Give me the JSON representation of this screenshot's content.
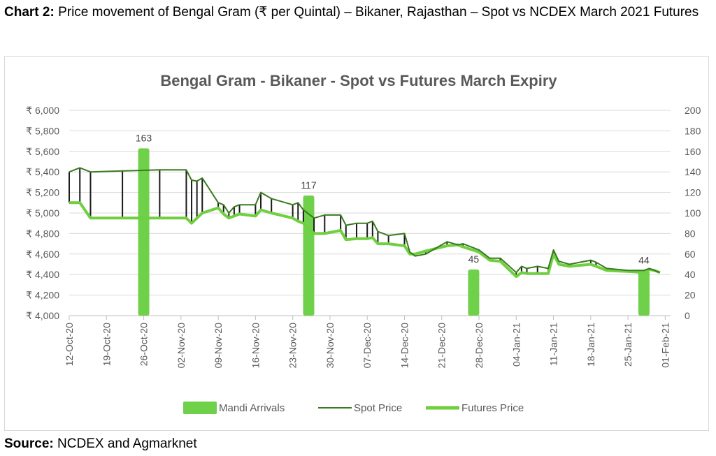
{
  "caption": {
    "label": "Chart 2:",
    "text": "Price movement of Bengal Gram (₹ per Quintal) – Bikaner, Rajasthan – Spot vs NCDEX March 2021 Futures"
  },
  "source": {
    "label": "Source:",
    "text": "NCDEX and Agmarknet"
  },
  "colors": {
    "arrivals": "#6fd04a",
    "spot": "#3a7a20",
    "futures": "#6fcf3f",
    "hiLo": "#1a1a1a",
    "grid": "#d9d9d9",
    "axisText": "#595959"
  },
  "chart_data": {
    "type": "bar",
    "title": "Bengal Gram - Bikaner - Spot vs Futures March Expiry",
    "grid": true,
    "legend_position": "bottom",
    "legend": [
      "Mandi Arrivals",
      "Spot Price",
      "Futures Price"
    ],
    "x_ticks": [
      "12-Oct-20",
      "19-Oct-20",
      "26-Oct-20",
      "02-Nov-20",
      "09-Nov-20",
      "16-Nov-20",
      "23-Nov-20",
      "30-Nov-20",
      "07-Dec-20",
      "14-Dec-20",
      "21-Dec-20",
      "28-Dec-20",
      "04-Jan-21",
      "11-Jan-21",
      "18-Jan-21",
      "25-Jan-21",
      "01-Feb-21"
    ],
    "x_range": [
      "12-Oct-20",
      "02-Feb-21"
    ],
    "y_left": {
      "min": 4000,
      "max": 6000,
      "step": 200,
      "tick_labels": [
        "₹ 4,000",
        "₹ 4,200",
        "₹ 4,400",
        "₹ 4,600",
        "₹ 4,800",
        "₹ 5,000",
        "₹ 5,200",
        "₹ 5,400",
        "₹ 5,600",
        "₹ 5,800",
        "₹ 6,000"
      ]
    },
    "y_right": {
      "min": 0,
      "max": 200,
      "step": 20,
      "tick_labels": [
        "0",
        "20",
        "40",
        "60",
        "80",
        "100",
        "120",
        "140",
        "160",
        "180",
        "200"
      ]
    },
    "arrivals": [
      {
        "date": "26-Oct-20",
        "value": 163,
        "label": "163"
      },
      {
        "date": "26-Nov-20",
        "value": 117,
        "label": "117"
      },
      {
        "date": "27-Dec-20",
        "value": 45,
        "label": "45"
      },
      {
        "date": "28-Jan-21",
        "value": 44,
        "label": "44"
      }
    ],
    "series": [
      {
        "name": "Spot Price",
        "points": [
          [
            "12-Oct-20",
            5400
          ],
          [
            "14-Oct-20",
            5440
          ],
          [
            "16-Oct-20",
            5400
          ],
          [
            "22-Oct-20",
            5410
          ],
          [
            "29-Oct-20",
            5420
          ],
          [
            "03-Nov-20",
            5420
          ],
          [
            "04-Nov-20",
            5320
          ],
          [
            "05-Nov-20",
            5310
          ],
          [
            "06-Nov-20",
            5340
          ],
          [
            "09-Nov-20",
            5100
          ],
          [
            "10-Nov-20",
            5080
          ],
          [
            "11-Nov-20",
            5000
          ],
          [
            "12-Nov-20",
            5060
          ],
          [
            "13-Nov-20",
            5080
          ],
          [
            "16-Nov-20",
            5080
          ],
          [
            "17-Nov-20",
            5200
          ],
          [
            "19-Nov-20",
            5140
          ],
          [
            "23-Nov-20",
            5080
          ],
          [
            "24-Nov-20",
            5100
          ],
          [
            "25-Nov-20",
            5030
          ],
          [
            "27-Nov-20",
            4950
          ],
          [
            "29-Nov-20",
            4980
          ],
          [
            "02-Dec-20",
            4980
          ],
          [
            "03-Dec-20",
            4880
          ],
          [
            "05-Dec-20",
            4900
          ],
          [
            "07-Dec-20",
            4900
          ],
          [
            "08-Dec-20",
            4920
          ],
          [
            "09-Dec-20",
            4820
          ],
          [
            "11-Dec-20",
            4780
          ],
          [
            "14-Dec-20",
            4800
          ],
          [
            "15-Dec-20",
            4620
          ],
          [
            "16-Dec-20",
            4580
          ],
          [
            "18-Dec-20",
            4600
          ],
          [
            "22-Dec-20",
            4720
          ],
          [
            "24-Dec-20",
            4690
          ],
          [
            "25-Dec-20",
            4700
          ],
          [
            "28-Dec-20",
            4640
          ],
          [
            "30-Dec-20",
            4560
          ],
          [
            "01-Jan-21",
            4560
          ],
          [
            "04-Jan-21",
            4420
          ],
          [
            "05-Jan-21",
            4480
          ],
          [
            "06-Jan-21",
            4460
          ],
          [
            "08-Jan-21",
            4480
          ],
          [
            "10-Jan-21",
            4460
          ],
          [
            "11-Jan-21",
            4640
          ],
          [
            "12-Jan-21",
            4530
          ],
          [
            "14-Jan-21",
            4500
          ],
          [
            "18-Jan-21",
            4540
          ],
          [
            "19-Jan-21",
            4520
          ],
          [
            "21-Jan-21",
            4460
          ],
          [
            "25-Jan-21",
            4440
          ],
          [
            "28-Jan-21",
            4440
          ],
          [
            "29-Jan-21",
            4460
          ],
          [
            "30-Jan-21",
            4440
          ],
          [
            "31-Jan-21",
            4420
          ]
        ]
      },
      {
        "name": "Futures Price",
        "points": [
          [
            "12-Oct-20",
            5100
          ],
          [
            "14-Oct-20",
            5100
          ],
          [
            "16-Oct-20",
            4950
          ],
          [
            "22-Oct-20",
            4950
          ],
          [
            "29-Oct-20",
            4950
          ],
          [
            "03-Nov-20",
            4950
          ],
          [
            "04-Nov-20",
            4900
          ],
          [
            "05-Nov-20",
            4950
          ],
          [
            "06-Nov-20",
            5000
          ],
          [
            "09-Nov-20",
            5050
          ],
          [
            "10-Nov-20",
            4990
          ],
          [
            "11-Nov-20",
            4950
          ],
          [
            "12-Nov-20",
            4970
          ],
          [
            "13-Nov-20",
            4990
          ],
          [
            "16-Nov-20",
            4970
          ],
          [
            "17-Nov-20",
            5030
          ],
          [
            "19-Nov-20",
            5000
          ],
          [
            "23-Nov-20",
            4950
          ],
          [
            "24-Nov-20",
            4920
          ],
          [
            "25-Nov-20",
            4900
          ],
          [
            "27-Nov-20",
            4800
          ],
          [
            "29-Nov-20",
            4800
          ],
          [
            "02-Dec-20",
            4830
          ],
          [
            "03-Dec-20",
            4740
          ],
          [
            "05-Dec-20",
            4750
          ],
          [
            "07-Dec-20",
            4750
          ],
          [
            "08-Dec-20",
            4760
          ],
          [
            "09-Dec-20",
            4700
          ],
          [
            "11-Dec-20",
            4700
          ],
          [
            "14-Dec-20",
            4680
          ],
          [
            "15-Dec-20",
            4600
          ],
          [
            "16-Dec-20",
            4600
          ],
          [
            "18-Dec-20",
            4630
          ],
          [
            "22-Dec-20",
            4680
          ],
          [
            "24-Dec-20",
            4690
          ],
          [
            "25-Dec-20",
            4670
          ],
          [
            "28-Dec-20",
            4620
          ],
          [
            "30-Dec-20",
            4540
          ],
          [
            "01-Jan-21",
            4530
          ],
          [
            "04-Jan-21",
            4380
          ],
          [
            "05-Jan-21",
            4420
          ],
          [
            "06-Jan-21",
            4410
          ],
          [
            "08-Jan-21",
            4410
          ],
          [
            "10-Jan-21",
            4410
          ],
          [
            "11-Jan-21",
            4600
          ],
          [
            "12-Jan-21",
            4500
          ],
          [
            "14-Jan-21",
            4480
          ],
          [
            "18-Jan-21",
            4500
          ],
          [
            "19-Jan-21",
            4480
          ],
          [
            "21-Jan-21",
            4440
          ],
          [
            "25-Jan-21",
            4430
          ],
          [
            "28-Jan-21",
            4420
          ],
          [
            "29-Jan-21",
            4450
          ],
          [
            "30-Jan-21",
            4440
          ],
          [
            "31-Jan-21",
            4420
          ]
        ]
      }
    ]
  }
}
